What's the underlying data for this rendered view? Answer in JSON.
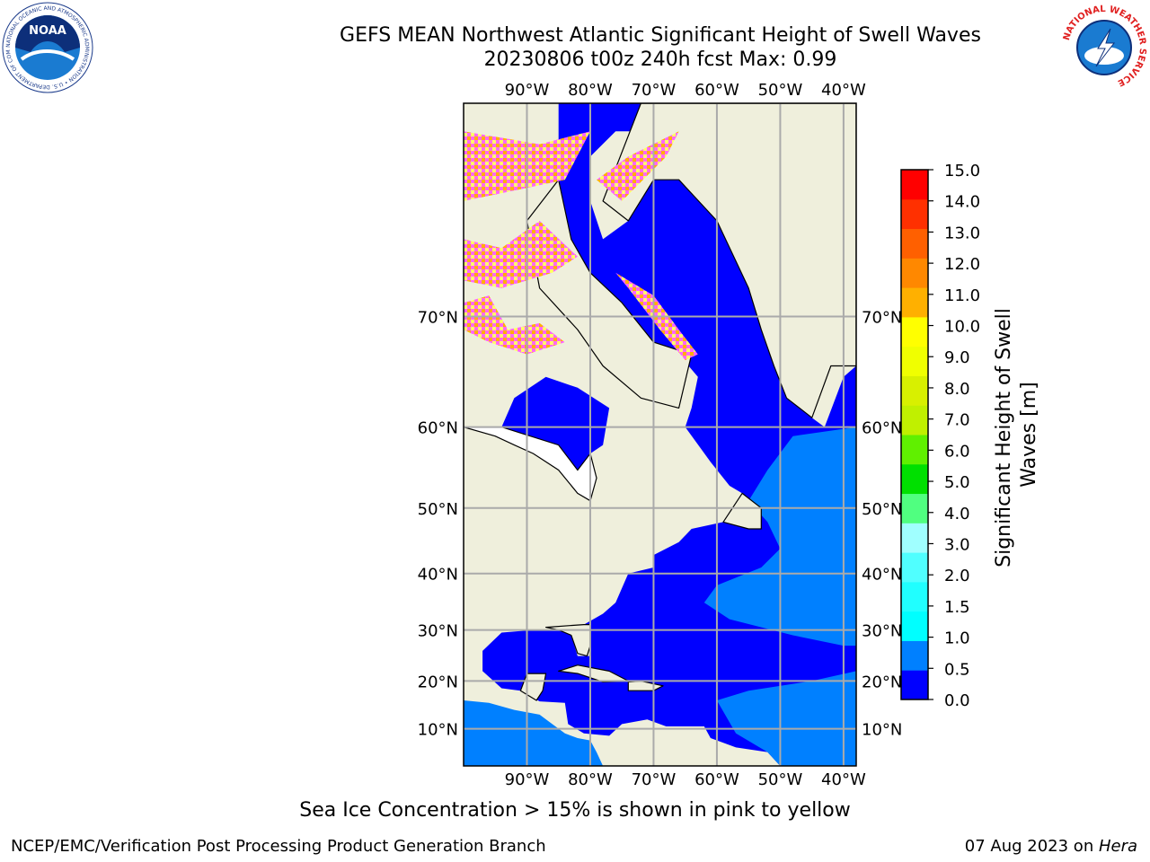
{
  "title": {
    "line1": "GEFS MEAN Northwest Atlantic Significant Height of Swell Waves",
    "line2": "20230806 t00z 240h fcst   Max: 0.99"
  },
  "logos": {
    "left": "noaa-logo",
    "left_text": "NOAA",
    "left_ring_text": "NATIONAL OCEANIC AND ATMOSPHERIC ADMINISTRATION • U.S. DEPARTMENT OF COMMERCE",
    "right": "nws-logo",
    "right_ring_text": "NATIONAL WEATHER SERVICE"
  },
  "map": {
    "projection": "mercator",
    "lon_range": [
      -100,
      -38
    ],
    "lat_range": [
      2,
      81
    ],
    "lon_ticks": [
      {
        "value": -90,
        "label": "90°W"
      },
      {
        "value": -80,
        "label": "80°W"
      },
      {
        "value": -70,
        "label": "70°W"
      },
      {
        "value": -60,
        "label": "60°W"
      },
      {
        "value": -50,
        "label": "50°W"
      },
      {
        "value": -40,
        "label": "40°W"
      }
    ],
    "lat_ticks": [
      {
        "value": 70,
        "label": "70°N"
      },
      {
        "value": 60,
        "label": "60°N"
      },
      {
        "value": 50,
        "label": "50°N"
      },
      {
        "value": 40,
        "label": "40°N"
      },
      {
        "value": 30,
        "label": "30°N"
      },
      {
        "value": 20,
        "label": "20°N"
      },
      {
        "value": 10,
        "label": "10°N"
      }
    ],
    "grid": true,
    "colors": {
      "land": "#efefdc",
      "ocean_low": "#0000ff",
      "ocean_mid": "#0080ff",
      "grid": "#aaaaaa",
      "coast": "#000000",
      "ice_pink": "#ff66ff",
      "ice_orange": "#ffb000",
      "ice_yellow": "#ffff66"
    }
  },
  "colorbar": {
    "label": "Significant Height of Swell Waves [m]",
    "label_line1": "Significant Height of Swell",
    "label_line2": "Waves [m]",
    "range": [
      0,
      15
    ],
    "levels": [
      {
        "from": 0.0,
        "to": 0.5,
        "color": "#0000ff"
      },
      {
        "from": 0.5,
        "to": 1.0,
        "color": "#0080ff"
      },
      {
        "from": 1.0,
        "to": 1.5,
        "color": "#00ffff"
      },
      {
        "from": 1.5,
        "to": 2.0,
        "color": "#20ffff"
      },
      {
        "from": 2.0,
        "to": 2.5,
        "color": "#50ffff"
      },
      {
        "from": 2.5,
        "to": 3.0,
        "color": "#a0ffff"
      },
      {
        "from": 3.0,
        "to": 4.0,
        "color": "#50ff80"
      },
      {
        "from": 4.0,
        "to": 5.0,
        "color": "#00e000"
      },
      {
        "from": 5.0,
        "to": 6.0,
        "color": "#60f000"
      },
      {
        "from": 6.0,
        "to": 7.0,
        "color": "#c0f000"
      },
      {
        "from": 7.0,
        "to": 8.0,
        "color": "#d8f000"
      },
      {
        "from": 8.0,
        "to": 9.0,
        "color": "#f0ff00"
      },
      {
        "from": 9.0,
        "to": 10.0,
        "color": "#ffff00"
      },
      {
        "from": 10.0,
        "to": 11.0,
        "color": "#ffb000"
      },
      {
        "from": 11.0,
        "to": 12.0,
        "color": "#ff8800"
      },
      {
        "from": 12.0,
        "to": 13.0,
        "color": "#ff6000"
      },
      {
        "from": 13.0,
        "to": 14.0,
        "color": "#ff3000"
      },
      {
        "from": 14.0,
        "to": 15.0,
        "color": "#ff0000"
      }
    ],
    "ticks": [
      "0.0",
      "0.5",
      "1.0",
      "1.5",
      "2.0",
      "3.0",
      "4.0",
      "5.0",
      "6.0",
      "7.0",
      "8.0",
      "9.0",
      "10.0",
      "11.0",
      "12.0",
      "13.0",
      "14.0",
      "15.0"
    ]
  },
  "note": "Sea Ice Concentration > 15% is shown in pink to yellow",
  "footer": {
    "credit": "NCEP/EMC/Verification Post Processing Product Generation Branch",
    "date": "07 Aug 2023 on ",
    "machine": "Hera"
  }
}
